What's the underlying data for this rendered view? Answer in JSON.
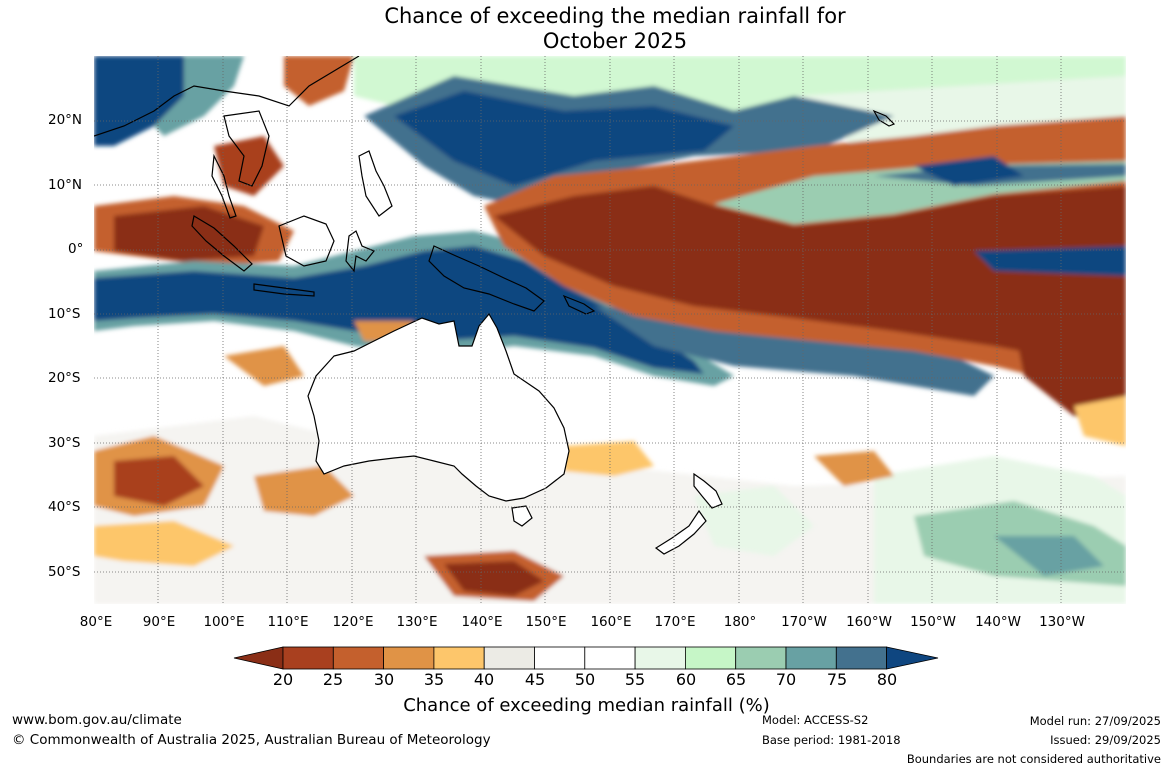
{
  "title": {
    "line1": "Chance of exceeding the median rainfall for",
    "line2": "October 2025"
  },
  "map": {
    "lat_labels": [
      "20°N",
      "10°N",
      "0°",
      "10°S",
      "20°S",
      "30°S",
      "40°S",
      "50°S"
    ],
    "lon_labels": [
      "80°E",
      "90°E",
      "100°E",
      "110°E",
      "120°E",
      "130°E",
      "140°E",
      "150°E",
      "160°E",
      "170°E",
      "180°",
      "170°W",
      "160°W",
      "150°W",
      "140°W",
      "130°W"
    ]
  },
  "colorbar": {
    "ticks": [
      "20",
      "25",
      "30",
      "35",
      "40",
      "45",
      "50",
      "55",
      "60",
      "65",
      "70",
      "75",
      "80"
    ],
    "colors": {
      "below20": "#8a2e16",
      "b20_25": "#a9401f",
      "b25_30": "#c4602d",
      "b30_35": "#e09346",
      "b35_40": "#fdc66b",
      "b40_45": "#ecebe5",
      "b45_50": "#ffffff",
      "b50_55": "#ffffff",
      "b55_60": "#e8f7e8",
      "b60_65": "#c6f6c7",
      "b65_70": "#9bcdb1",
      "b70_75": "#68a1a3",
      "b75_80": "#43718e",
      "above80": "#0f4680"
    },
    "label": "Chance of exceeding median rainfall (%)"
  },
  "footer": {
    "website": "www.bom.gov.au/climate",
    "copyright": "© Commonwealth of Australia 2025, Australian Bureau of Meteorology",
    "model": "Model: ACCESS-S2",
    "base_period": "Base period: 1981-2018",
    "model_run": "Model run: 27/09/2025",
    "issued": "Issued: 29/09/2025",
    "disclaimer": "Boundaries are not considered authoritative"
  }
}
